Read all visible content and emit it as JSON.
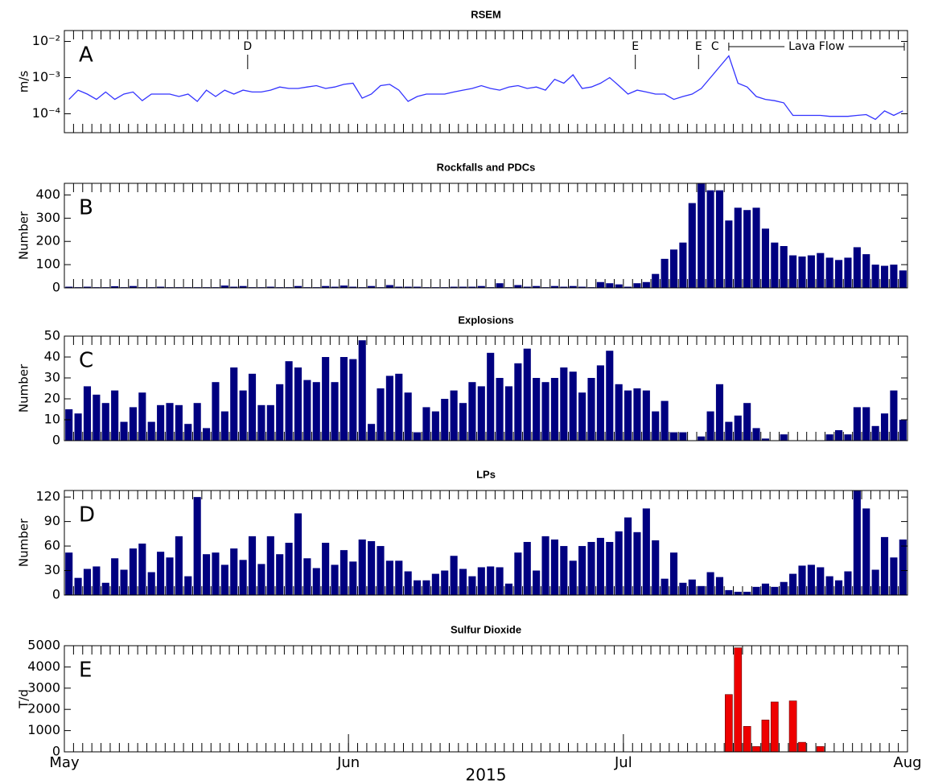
{
  "chart_data": [
    {
      "type": "line",
      "title": "RSEM",
      "panel_label": "A",
      "ylabel": "m/s",
      "log_scale": true,
      "color": "#3333ff",
      "x": [
        0,
        1,
        2,
        3,
        4,
        5,
        6,
        7,
        8,
        9,
        10,
        11,
        12,
        13,
        14,
        15,
        16,
        17,
        18,
        19,
        20,
        21,
        22,
        23,
        24,
        25,
        26,
        27,
        28,
        29,
        30,
        31,
        32,
        33,
        34,
        35,
        36,
        37,
        38,
        39,
        40,
        41,
        42,
        43,
        44,
        45,
        46,
        47,
        48,
        49,
        50,
        51,
        52,
        53,
        54,
        55,
        56,
        57,
        58,
        59,
        60,
        61,
        62,
        63,
        64,
        65,
        66,
        67,
        68,
        69,
        70,
        71,
        72,
        73,
        74,
        75,
        76,
        77,
        78,
        79,
        80,
        81,
        82,
        83,
        84,
        85,
        86,
        87,
        88,
        89,
        90,
        91
      ],
      "values": [
        0.00025,
        0.00045,
        0.00035,
        0.00025,
        0.0004,
        0.00025,
        0.00035,
        0.0004,
        0.00023,
        0.00035,
        0.00035,
        0.00035,
        0.0003,
        0.00035,
        0.00022,
        0.00045,
        0.0003,
        0.00045,
        0.00035,
        0.00045,
        0.0004,
        0.0004,
        0.00045,
        0.00055,
        0.0005,
        0.0005,
        0.00055,
        0.0006,
        0.0005,
        0.00055,
        0.00065,
        0.0007,
        0.00027,
        0.00035,
        0.0006,
        0.00065,
        0.00045,
        0.00022,
        0.0003,
        0.00035,
        0.00035,
        0.00035,
        0.0004,
        0.00045,
        0.0005,
        0.0006,
        0.0005,
        0.00045,
        0.00055,
        0.0006,
        0.0005,
        0.00055,
        0.00045,
        0.0009,
        0.0007,
        0.0012,
        0.0005,
        0.00055,
        0.0007,
        0.001,
        0.0006,
        0.00035,
        0.00045,
        0.0004,
        0.00035,
        0.00035,
        0.00025,
        0.0003,
        0.00035,
        0.0005,
        0.001,
        0.002,
        0.004,
        0.0007,
        0.00055,
        0.0003,
        0.00025,
        0.00023,
        0.0002,
        9e-05,
        9e-05,
        9e-05,
        9e-05,
        8.5e-05,
        8.5e-05,
        8.5e-05,
        9e-05,
        9.5e-05,
        7e-05,
        0.00012,
        9e-05,
        0.00012
      ],
      "xlim": [
        0,
        92
      ],
      "ylim": [
        3e-05,
        0.02
      ],
      "yticks": [
        {
          "value": 0.0001,
          "label": "10⁻⁴"
        },
        {
          "value": 0.001,
          "label": "10⁻³"
        },
        {
          "value": 0.01,
          "label": "10⁻²"
        }
      ],
      "annotations": [
        {
          "text": "D",
          "x": 20
        },
        {
          "text": "E",
          "x": 62.3
        },
        {
          "text": "E",
          "x": 69.2
        },
        {
          "text": "C",
          "x": 71
        }
      ],
      "range_annotation": {
        "text": "Lava Flow",
        "range": [
          72.5,
          92
        ]
      }
    },
    {
      "type": "bar",
      "title": "Rockfalls and PDCs",
      "panel_label": "B",
      "ylabel": "Number",
      "color": "#000080",
      "x": [
        0,
        1,
        2,
        3,
        4,
        5,
        6,
        7,
        8,
        9,
        10,
        11,
        12,
        13,
        14,
        15,
        16,
        17,
        18,
        19,
        20,
        21,
        22,
        23,
        24,
        25,
        26,
        27,
        28,
        29,
        30,
        31,
        32,
        33,
        34,
        35,
        36,
        37,
        38,
        39,
        40,
        41,
        42,
        43,
        44,
        45,
        46,
        47,
        48,
        49,
        50,
        51,
        52,
        53,
        54,
        55,
        56,
        57,
        58,
        59,
        60,
        61,
        62,
        63,
        64,
        65,
        66,
        67,
        68,
        69,
        70,
        71,
        72,
        73,
        74,
        75,
        76,
        77,
        78,
        79,
        80,
        81,
        82,
        83,
        84,
        85,
        86,
        87,
        88,
        89,
        90,
        91
      ],
      "values": [
        5,
        3,
        5,
        3,
        3,
        7,
        3,
        8,
        3,
        3,
        5,
        3,
        3,
        3,
        3,
        3,
        3,
        10,
        5,
        8,
        3,
        3,
        5,
        3,
        3,
        8,
        3,
        3,
        8,
        5,
        10,
        5,
        3,
        8,
        3,
        12,
        5,
        5,
        5,
        3,
        3,
        3,
        5,
        5,
        5,
        8,
        3,
        20,
        3,
        12,
        5,
        8,
        3,
        8,
        5,
        8,
        5,
        3,
        25,
        20,
        15,
        5,
        20,
        25,
        60,
        125,
        165,
        195,
        365,
        450,
        420,
        420,
        290,
        345,
        335,
        345,
        255,
        195,
        180,
        140,
        135,
        140,
        150,
        130,
        120,
        130,
        175,
        145,
        100,
        95,
        100,
        75
      ],
      "xlim": [
        0,
        92
      ],
      "ylim": [
        0,
        450
      ],
      "yticks": [
        0,
        100,
        200,
        300,
        400
      ]
    },
    {
      "type": "bar",
      "title": "Explosions",
      "panel_label": "C",
      "ylabel": "Number",
      "color": "#000080",
      "x": [
        0,
        1,
        2,
        3,
        4,
        5,
        6,
        7,
        8,
        9,
        10,
        11,
        12,
        13,
        14,
        15,
        16,
        17,
        18,
        19,
        20,
        21,
        22,
        23,
        24,
        25,
        26,
        27,
        28,
        29,
        30,
        31,
        32,
        33,
        34,
        35,
        36,
        37,
        38,
        39,
        40,
        41,
        42,
        43,
        44,
        45,
        46,
        47,
        48,
        49,
        50,
        51,
        52,
        53,
        54,
        55,
        56,
        57,
        58,
        59,
        60,
        61,
        62,
        63,
        64,
        65,
        66,
        67,
        68,
        69,
        70,
        71,
        72,
        73,
        74,
        75,
        76,
        77,
        78,
        79,
        80,
        81,
        82,
        83,
        84,
        85,
        86,
        87,
        88,
        89,
        90,
        91
      ],
      "values": [
        15,
        13,
        26,
        22,
        18,
        24,
        9,
        16,
        23,
        9,
        17,
        18,
        17,
        8,
        18,
        6,
        28,
        14,
        35,
        24,
        32,
        17,
        17,
        27,
        38,
        35,
        29,
        28,
        40,
        28,
        40,
        39,
        48,
        8,
        25,
        31,
        32,
        23,
        4,
        16,
        14,
        20,
        24,
        18,
        28,
        26,
        42,
        30,
        26,
        37,
        44,
        30,
        28,
        30,
        35,
        33,
        23,
        30,
        36,
        43,
        27,
        24,
        25,
        24,
        14,
        19,
        4,
        4,
        0,
        2,
        14,
        27,
        9,
        12,
        18,
        6,
        1,
        0,
        3,
        0,
        0,
        0,
        0,
        3,
        5,
        3,
        16,
        16,
        7,
        13,
        24,
        10
      ],
      "xlim": [
        0,
        92
      ],
      "ylim": [
        0,
        50
      ],
      "yticks": [
        0,
        10,
        20,
        30,
        40,
        50
      ]
    },
    {
      "type": "bar",
      "title": "LPs",
      "panel_label": "D",
      "ylabel": "Number",
      "color": "#000080",
      "x": [
        0,
        1,
        2,
        3,
        4,
        5,
        6,
        7,
        8,
        9,
        10,
        11,
        12,
        13,
        14,
        15,
        16,
        17,
        18,
        19,
        20,
        21,
        22,
        23,
        24,
        25,
        26,
        27,
        28,
        29,
        30,
        31,
        32,
        33,
        34,
        35,
        36,
        37,
        38,
        39,
        40,
        41,
        42,
        43,
        44,
        45,
        46,
        47,
        48,
        49,
        50,
        51,
        52,
        53,
        54,
        55,
        56,
        57,
        58,
        59,
        60,
        61,
        62,
        63,
        64,
        65,
        66,
        67,
        68,
        69,
        70,
        71,
        72,
        73,
        74,
        75,
        76,
        77,
        78,
        79,
        80,
        81,
        82,
        83,
        84,
        85,
        86,
        87,
        88,
        89,
        90,
        91
      ],
      "values": [
        52,
        21,
        32,
        35,
        15,
        45,
        31,
        57,
        63,
        28,
        53,
        46,
        72,
        23,
        120,
        50,
        52,
        37,
        57,
        43,
        72,
        38,
        72,
        50,
        64,
        100,
        45,
        33,
        64,
        37,
        55,
        41,
        68,
        66,
        60,
        42,
        42,
        29,
        18,
        18,
        26,
        30,
        48,
        32,
        23,
        34,
        35,
        34,
        14,
        52,
        65,
        30,
        72,
        68,
        60,
        42,
        60,
        65,
        70,
        65,
        78,
        95,
        77,
        106,
        67,
        20,
        52,
        15,
        19,
        11,
        28,
        22,
        6,
        4,
        4,
        10,
        14,
        10,
        16,
        26,
        36,
        37,
        34,
        23,
        18,
        29,
        128,
        106,
        31,
        71,
        46,
        68
      ],
      "xlim": [
        0,
        92
      ],
      "ylim": [
        0,
        128
      ],
      "yticks": [
        0,
        30,
        60,
        90,
        120
      ]
    },
    {
      "type": "bar",
      "title": "Sulfur Dioxide",
      "panel_label": "E",
      "ylabel": "T/d",
      "color": "#ee0000",
      "xlabel": "2015",
      "x": [
        0,
        1,
        2,
        3,
        4,
        5,
        6,
        7,
        8,
        9,
        10,
        11,
        12,
        13,
        14,
        15,
        16,
        17,
        18,
        19,
        20,
        21,
        22,
        23,
        24,
        25,
        26,
        27,
        28,
        29,
        30,
        31,
        32,
        33,
        34,
        35,
        36,
        37,
        38,
        39,
        40,
        41,
        42,
        43,
        44,
        45,
        46,
        47,
        48,
        49,
        50,
        51,
        52,
        53,
        54,
        55,
        56,
        57,
        58,
        59,
        60,
        61,
        62,
        63,
        64,
        65,
        66,
        67,
        68,
        69,
        70,
        71,
        72,
        73,
        74,
        75,
        76,
        77,
        78,
        79,
        80,
        81,
        82,
        83,
        84,
        85,
        86,
        87,
        88,
        89,
        90,
        91
      ],
      "values": [
        null,
        null,
        null,
        null,
        null,
        null,
        null,
        null,
        null,
        null,
        null,
        null,
        null,
        null,
        null,
        null,
        null,
        null,
        null,
        null,
        null,
        null,
        null,
        null,
        null,
        null,
        null,
        null,
        null,
        null,
        null,
        null,
        null,
        null,
        null,
        null,
        null,
        null,
        null,
        null,
        null,
        null,
        null,
        null,
        null,
        null,
        null,
        null,
        null,
        null,
        null,
        null,
        null,
        null,
        null,
        null,
        null,
        null,
        null,
        null,
        null,
        null,
        null,
        null,
        null,
        null,
        null,
        null,
        null,
        null,
        null,
        null,
        2700,
        4900,
        1200,
        250,
        1500,
        2350,
        null,
        2400,
        450,
        null,
        250,
        null,
        null,
        null,
        null,
        null,
        null,
        null,
        null,
        null
      ],
      "xlim": [
        0,
        92
      ],
      "ylim": [
        0,
        5000
      ],
      "yticks": [
        0,
        1000,
        2000,
        3000,
        4000,
        5000
      ],
      "xticks": [
        {
          "value": 0,
          "label": "May"
        },
        {
          "value": 31,
          "label": "Jun"
        },
        {
          "value": 61,
          "label": "Jul"
        },
        {
          "value": 92,
          "label": "Aug"
        }
      ]
    }
  ]
}
